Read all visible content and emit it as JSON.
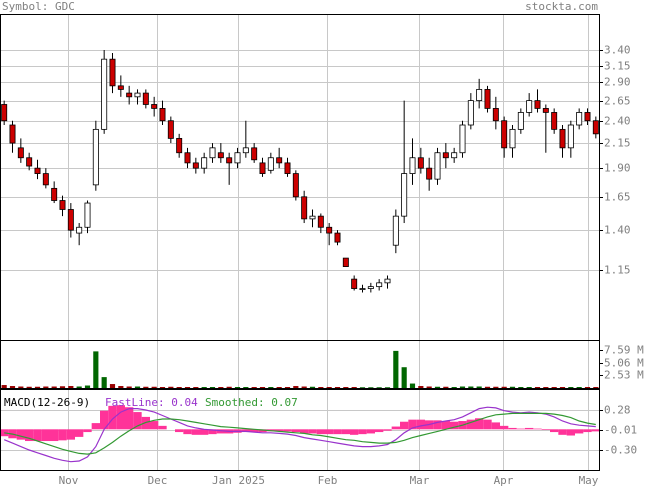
{
  "header": {
    "symbol": "Symbol: GDC",
    "site": "stockta.com"
  },
  "chart_data": [
    {
      "type": "candlestick",
      "ylog": true,
      "grid": true,
      "up_color": "#ffffff",
      "down_color": "#cc0000",
      "ylim": [
        0.815,
        4.06
      ],
      "yticks": [
        {
          "value": 3.4,
          "label": "3.40"
        },
        3.15,
        {
          "value": 2.9,
          "label": "2.90"
        },
        2.65,
        {
          "value": 2.4,
          "label": "2.40"
        },
        2.15,
        {
          "value": 1.9,
          "label": "1.90"
        },
        1.65,
        {
          "value": 1.4,
          "label": "1.40"
        },
        1.15
      ],
      "open": [
        2.6,
        2.35,
        2.1,
        2.0,
        1.9,
        1.85,
        1.72,
        1.62,
        1.55,
        1.38,
        1.42,
        1.75,
        2.3,
        3.25,
        2.85,
        2.75,
        2.7,
        2.75,
        2.6,
        2.55,
        2.4,
        2.2,
        2.05,
        1.95,
        1.9,
        2.0,
        2.05,
        2.0,
        1.95,
        2.05,
        2.1,
        1.95,
        1.88,
        2.0,
        1.95,
        1.85,
        1.65,
        1.48,
        1.5,
        1.42,
        1.38,
        1.22,
        1.1,
        1.05,
        1.05,
        1.06,
        1.08,
        1.3,
        1.5,
        1.85,
        2.0,
        1.9,
        1.8,
        2.05,
        2.0,
        2.05,
        2.35,
        2.65,
        2.8,
        2.55,
        2.4,
        2.1,
        2.3,
        2.5,
        2.65,
        2.55,
        2.5,
        2.3,
        2.1,
        2.35,
        2.5,
        2.4
      ],
      "high": [
        2.65,
        2.4,
        2.2,
        2.05,
        1.98,
        1.9,
        1.78,
        1.66,
        1.6,
        1.45,
        1.62,
        2.4,
        3.4,
        3.35,
        3.0,
        2.85,
        2.8,
        2.8,
        2.7,
        2.65,
        2.45,
        2.25,
        2.1,
        2.0,
        2.05,
        2.15,
        2.15,
        2.05,
        2.1,
        2.4,
        2.15,
        2.0,
        2.05,
        2.1,
        2.0,
        1.88,
        1.7,
        1.55,
        1.52,
        1.45,
        1.4,
        1.22,
        1.12,
        1.07,
        1.08,
        1.1,
        1.12,
        1.55,
        2.65,
        2.2,
        2.1,
        2.0,
        2.1,
        2.15,
        2.1,
        2.4,
        2.75,
        2.95,
        2.85,
        2.7,
        2.45,
        2.35,
        2.55,
        2.75,
        2.8,
        2.6,
        2.55,
        2.35,
        2.4,
        2.55,
        2.55,
        2.45
      ],
      "low": [
        2.35,
        2.05,
        1.95,
        1.88,
        1.8,
        1.72,
        1.6,
        1.5,
        1.35,
        1.3,
        1.38,
        1.7,
        2.25,
        2.75,
        2.7,
        2.6,
        2.6,
        2.55,
        2.45,
        2.35,
        2.15,
        2.0,
        1.9,
        1.85,
        1.85,
        1.95,
        1.95,
        1.75,
        1.9,
        2.0,
        1.95,
        1.82,
        1.85,
        1.9,
        1.82,
        1.62,
        1.45,
        1.42,
        1.38,
        1.3,
        1.3,
        1.17,
        1.04,
        1.03,
        1.03,
        1.04,
        1.05,
        1.25,
        1.45,
        1.75,
        1.85,
        1.7,
        1.75,
        1.9,
        1.95,
        2.0,
        2.3,
        2.55,
        2.5,
        2.3,
        2.0,
        2.0,
        2.25,
        2.45,
        2.5,
        2.05,
        2.25,
        2.0,
        2.0,
        2.3,
        2.35,
        2.2
      ],
      "close": [
        2.4,
        2.15,
        2.0,
        1.92,
        1.85,
        1.75,
        1.62,
        1.55,
        1.4,
        1.42,
        1.6,
        2.3,
        3.25,
        2.85,
        2.8,
        2.7,
        2.75,
        2.6,
        2.55,
        2.4,
        2.2,
        2.05,
        1.95,
        1.9,
        2.0,
        2.1,
        2.0,
        1.95,
        2.05,
        2.1,
        1.98,
        1.85,
        2.0,
        1.95,
        1.85,
        1.65,
        1.48,
        1.5,
        1.42,
        1.38,
        1.32,
        1.17,
        1.05,
        1.05,
        1.06,
        1.08,
        1.1,
        1.5,
        1.85,
        2.0,
        1.9,
        1.8,
        2.05,
        2.0,
        2.05,
        2.35,
        2.65,
        2.8,
        2.55,
        2.4,
        2.1,
        2.3,
        2.5,
        2.65,
        2.55,
        2.5,
        2.3,
        2.1,
        2.35,
        2.5,
        2.4,
        2.25
      ]
    },
    {
      "type": "bar",
      "grid": false,
      "up_color": "#006600",
      "down_color": "#990000",
      "ylim": [
        0,
        9700000
      ],
      "yticks": [
        {
          "value": 7590000,
          "label": "7.59 M"
        },
        {
          "value": 5060000,
          "label": "5.06 M"
        },
        {
          "value": 2530000,
          "label": "2.53 M"
        }
      ],
      "values": [
        600000,
        400000,
        300000,
        250000,
        250000,
        300000,
        300000,
        350000,
        400000,
        300000,
        500000,
        7400000,
        2200000,
        800000,
        400000,
        300000,
        300000,
        250000,
        250000,
        200000,
        250000,
        200000,
        200000,
        200000,
        200000,
        200000,
        200000,
        250000,
        200000,
        200000,
        200000,
        200000,
        200000,
        200000,
        200000,
        400000,
        300000,
        250000,
        200000,
        200000,
        200000,
        200000,
        200000,
        150000,
        150000,
        150000,
        150000,
        7500000,
        4200000,
        900000,
        400000,
        300000,
        250000,
        250000,
        200000,
        300000,
        300000,
        300000,
        250000,
        250000,
        250000,
        250000,
        200000,
        200000,
        200000,
        200000,
        200000,
        200000,
        200000,
        200000,
        200000,
        200000
      ]
    },
    {
      "type": "macd",
      "title": "MACD(12-26-9)",
      "grid": true,
      "xlim": [
        -0.5,
        71.5
      ],
      "xticks": [
        {
          "value": 7.7,
          "label": "Nov"
        },
        {
          "value": 18.4,
          "label": "Dec"
        },
        {
          "value": 28.1,
          "label": "Jan 2025"
        },
        {
          "value": 38.8,
          "label": "Feb"
        },
        {
          "value": 49.8,
          "label": "Mar"
        },
        {
          "value": 59.9,
          "label": "Apr"
        },
        {
          "value": 70.0,
          "label": "May"
        }
      ],
      "ylim": [
        -0.59,
        0.57
      ],
      "yticks": [
        0.28,
        -0.01,
        {
          "value": -0.3,
          "label": "-0.30"
        }
      ],
      "series": [
        {
          "name": "Histogram",
          "type": "bar",
          "color": "#ff3399",
          "values": [
            -0.1,
            -0.13,
            -0.15,
            -0.17,
            -0.17,
            -0.17,
            -0.17,
            -0.16,
            -0.15,
            -0.11,
            -0.04,
            0.09,
            0.27,
            0.34,
            0.35,
            0.32,
            0.25,
            0.18,
            0.12,
            0.05,
            0.0,
            -0.04,
            -0.07,
            -0.08,
            -0.08,
            -0.07,
            -0.06,
            -0.06,
            -0.05,
            -0.04,
            -0.04,
            -0.04,
            -0.03,
            -0.03,
            -0.03,
            -0.04,
            -0.06,
            -0.06,
            -0.07,
            -0.07,
            -0.07,
            -0.07,
            -0.08,
            -0.07,
            -0.06,
            -0.04,
            -0.02,
            0.04,
            0.11,
            0.14,
            0.14,
            0.13,
            0.13,
            0.12,
            0.11,
            0.12,
            0.14,
            0.16,
            0.14,
            0.1,
            0.05,
            0.02,
            0.01,
            0.02,
            0.01,
            -0.01,
            -0.04,
            -0.08,
            -0.09,
            -0.06,
            -0.04,
            -0.03
          ]
        },
        {
          "name": "FastLine: 0.04",
          "type": "line",
          "color": "#9933cc",
          "values": [
            -0.15,
            -0.2,
            -0.25,
            -0.3,
            -0.34,
            -0.38,
            -0.42,
            -0.45,
            -0.47,
            -0.46,
            -0.4,
            -0.25,
            0.0,
            0.15,
            0.25,
            0.3,
            0.3,
            0.28,
            0.25,
            0.2,
            0.15,
            0.1,
            0.05,
            0.02,
            0.0,
            -0.01,
            -0.02,
            -0.03,
            -0.03,
            -0.03,
            -0.04,
            -0.05,
            -0.05,
            -0.06,
            -0.07,
            -0.09,
            -0.12,
            -0.14,
            -0.16,
            -0.18,
            -0.2,
            -0.22,
            -0.24,
            -0.25,
            -0.25,
            -0.24,
            -0.22,
            -0.15,
            -0.05,
            0.02,
            0.05,
            0.07,
            0.1,
            0.12,
            0.14,
            0.18,
            0.24,
            0.3,
            0.32,
            0.31,
            0.27,
            0.25,
            0.24,
            0.25,
            0.24,
            0.22,
            0.18,
            0.12,
            0.08,
            0.06,
            0.05,
            0.04
          ]
        },
        {
          "name": "Smoothed: 0.07",
          "type": "line",
          "color": "#339933",
          "values": [
            -0.05,
            -0.07,
            -0.1,
            -0.13,
            -0.17,
            -0.21,
            -0.25,
            -0.29,
            -0.32,
            -0.35,
            -0.36,
            -0.34,
            -0.27,
            -0.19,
            -0.1,
            -0.02,
            0.05,
            0.1,
            0.13,
            0.15,
            0.15,
            0.14,
            0.12,
            0.1,
            0.08,
            0.06,
            0.04,
            0.03,
            0.02,
            0.01,
            0.0,
            -0.01,
            -0.02,
            -0.03,
            -0.04,
            -0.05,
            -0.06,
            -0.08,
            -0.09,
            -0.11,
            -0.13,
            -0.15,
            -0.16,
            -0.18,
            -0.19,
            -0.2,
            -0.2,
            -0.19,
            -0.16,
            -0.12,
            -0.09,
            -0.06,
            -0.03,
            0.0,
            0.03,
            0.06,
            0.1,
            0.14,
            0.18,
            0.21,
            0.22,
            0.23,
            0.23,
            0.23,
            0.23,
            0.23,
            0.22,
            0.2,
            0.17,
            0.12,
            0.09,
            0.07
          ]
        }
      ]
    }
  ]
}
